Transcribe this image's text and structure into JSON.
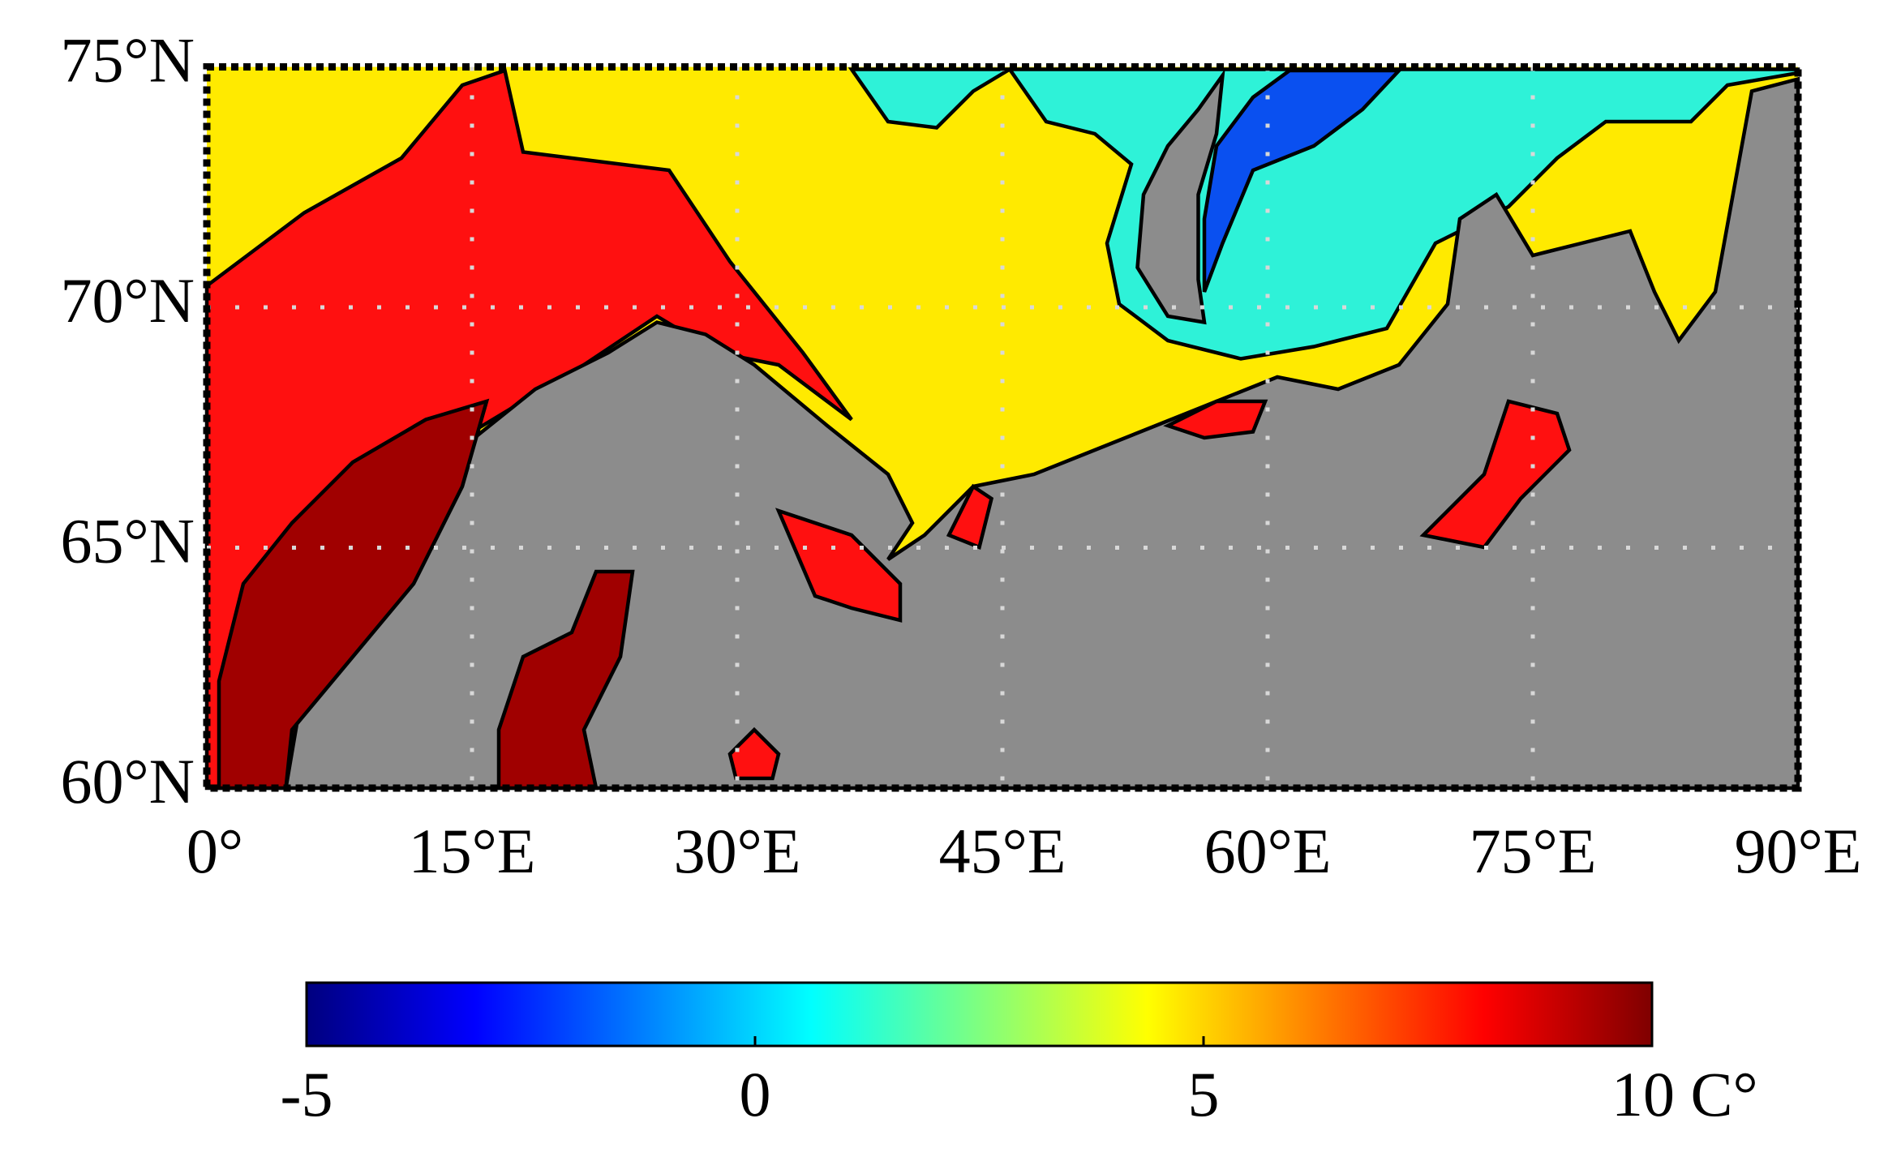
{
  "chart_data": {
    "type": "map",
    "xlim": [
      0,
      90
    ],
    "xticks": [
      {
        "value": 0,
        "label": "0°"
      },
      {
        "value": 15,
        "label": "15°E"
      },
      {
        "value": 30,
        "label": "30°E"
      },
      {
        "value": 45,
        "label": "45°E"
      },
      {
        "value": 60,
        "label": "60°E"
      },
      {
        "value": 75,
        "label": "75°E"
      },
      {
        "value": 90,
        "label": "90°E"
      }
    ],
    "ylim": [
      60,
      75
    ],
    "yticks": [
      {
        "value": 60,
        "label": "60°N"
      },
      {
        "value": 65,
        "label": "65°N"
      },
      {
        "value": 70,
        "label": "70°N"
      },
      {
        "value": 75,
        "label": "75°N"
      }
    ],
    "grid": true,
    "colorbar": {
      "colormap": "jet",
      "lim": [
        -5,
        10
      ],
      "ticks": [
        -5,
        0,
        5,
        {
          "value": 10,
          "label": "10 C°"
        }
      ]
    }
  }
}
